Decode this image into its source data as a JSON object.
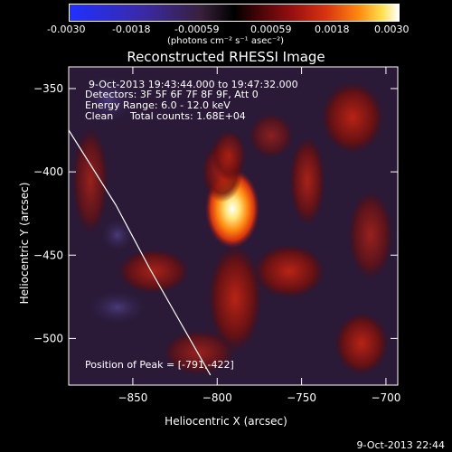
{
  "colorbar": {
    "ticks": [
      "-0.0030",
      "-0.0018",
      "-0.00059",
      "0.00059",
      "0.0018",
      "0.0030"
    ],
    "unit_label": "(photons cm⁻² s⁻¹ asec⁻²)",
    "range": [
      -0.003,
      0.003
    ]
  },
  "annotations": {
    "time_range": "9-Oct-2013 19:43:44.000 to 19:47:32.000",
    "detectors": "Detectors: 3F 5F 6F 7F 8F 9F, Att 0",
    "energy": "Energy Range: 6.0 - 12.0 keV",
    "clean_label": "Clean",
    "total_counts": "Total counts: 1.68E+04",
    "peak": "Position of Peak = [-791,-422]"
  },
  "footer": {
    "timestamp": "9-Oct-2013 22:44"
  },
  "colors": {
    "background": "#000000",
    "axis": "#ffffff",
    "peak_core": "#fff4c8",
    "emission": "#c82410",
    "negative": "#3a2a6a"
  },
  "chart_data": {
    "type": "heatmap",
    "title": "Reconstructed RHESSI Image",
    "xlabel": "Heliocentric X (arcsec)",
    "ylabel": "Heliocentric Y (arcsec)",
    "xlim": [
      -888,
      -693
    ],
    "ylim": [
      -528,
      -337
    ],
    "x_ticks": [
      -850,
      -800,
      -750,
      -700
    ],
    "y_ticks": [
      -500,
      -450,
      -400,
      -350
    ],
    "x_tick_labels": [
      "−850",
      "−800",
      "−750",
      "−700"
    ],
    "y_tick_labels": [
      "−500",
      "−450",
      "−400",
      "−350"
    ],
    "peak_position": [
      -791,
      -422
    ],
    "limb_curve": [
      [
        -888,
        -375
      ],
      [
        -860,
        -420
      ],
      [
        -840,
        -458
      ],
      [
        -822,
        -490
      ],
      [
        -804,
        -522
      ]
    ],
    "sources": [
      {
        "x": -791,
        "y": -422,
        "intensity": 1.0
      },
      {
        "x": -797,
        "y": -400,
        "intensity": 0.6
      },
      {
        "x": -793,
        "y": -390,
        "intensity": 0.4
      }
    ]
  }
}
